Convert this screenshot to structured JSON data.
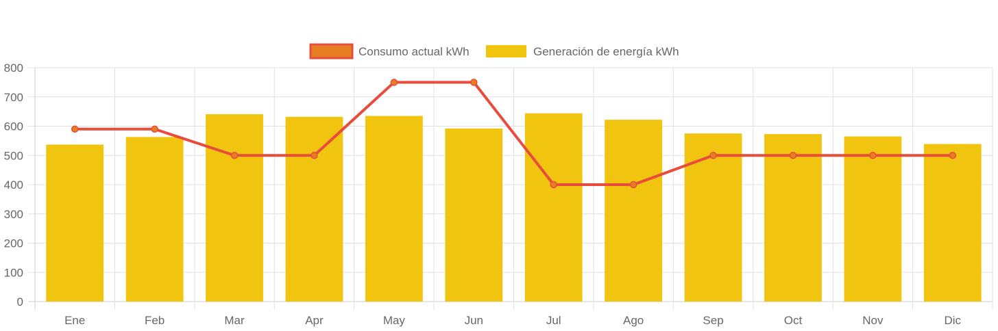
{
  "chart_data": {
    "type": "bar",
    "categories": [
      "Ene",
      "Feb",
      "Mar",
      "Apr",
      "May",
      "Jun",
      "Jul",
      "Ago",
      "Sep",
      "Oct",
      "Nov",
      "Dic"
    ],
    "series": [
      {
        "name": "Consumo actual kWh",
        "type": "line",
        "values": [
          590,
          590,
          500,
          500,
          750,
          750,
          400,
          400,
          500,
          500,
          500,
          500
        ],
        "color": "#e74c3c",
        "point_color": "#e67e22"
      },
      {
        "name": "Generación de energía kWh",
        "type": "bar",
        "values": [
          537,
          563,
          641,
          632,
          635,
          592,
          644,
          622,
          575,
          573,
          565,
          539
        ],
        "color": "#f1c40f"
      }
    ],
    "y_ticks": [
      "0",
      "100",
      "200",
      "300",
      "400",
      "500",
      "600",
      "700",
      "800"
    ],
    "ylim": [
      0,
      800
    ],
    "grid": true,
    "legend_position": "top-center"
  },
  "colors": {
    "grid": "#e0e0e0",
    "axis": "#cccccc",
    "text": "#666666"
  }
}
